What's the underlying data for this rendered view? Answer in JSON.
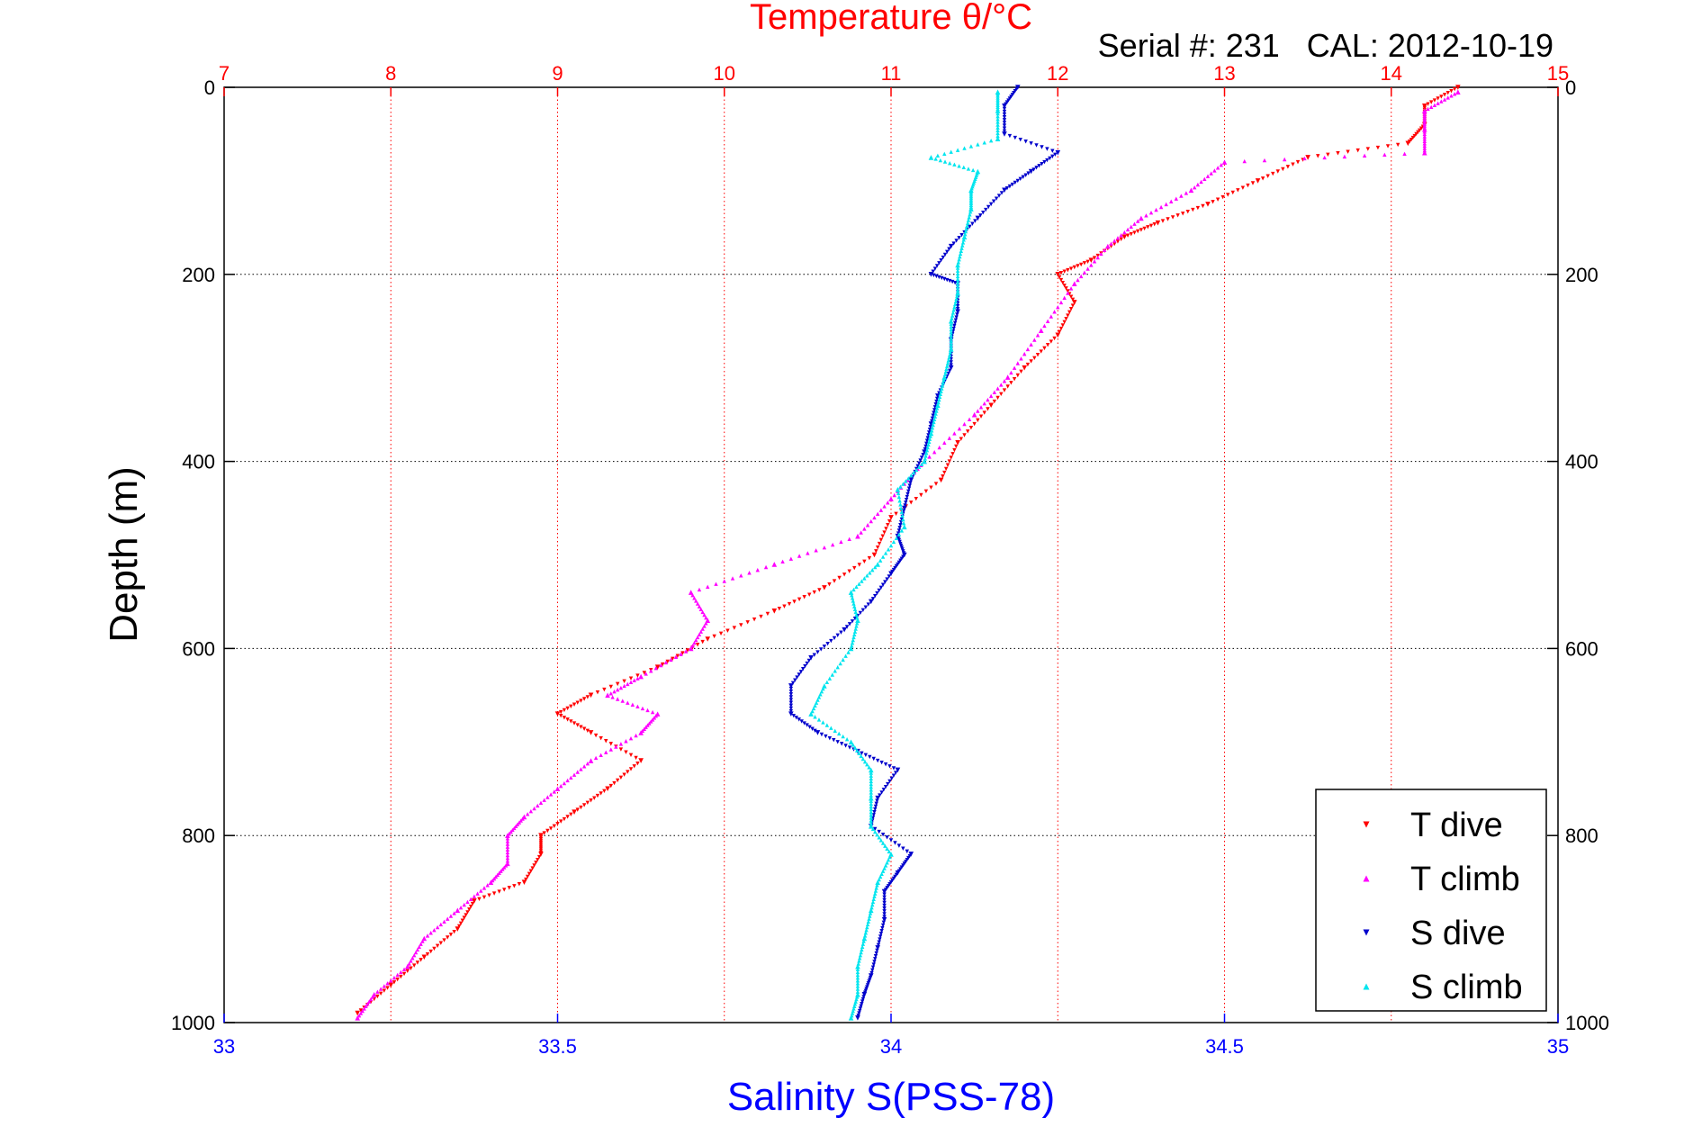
{
  "chart_data": {
    "type": "scatter",
    "title": "Temperature θ/°C",
    "subtitle": "Serial #: 231   CAL: 2012-10-19",
    "xlabel": "Salinity S(PSS-78)",
    "ylabel": "Depth (m)",
    "x_top": {
      "label": "Temperature θ/°C",
      "range": [
        7,
        15
      ],
      "ticks": [
        "7",
        "8",
        "9",
        "10",
        "11",
        "12",
        "13",
        "14",
        "15"
      ],
      "color": "#ff0000"
    },
    "x_bottom": {
      "label": "Salinity S(PSS-78)",
      "range": [
        33,
        35
      ],
      "ticks": [
        "33",
        "33.5",
        "34",
        "34.5",
        "35"
      ],
      "color": "#0000ff"
    },
    "y_range": [
      0,
      1000
    ],
    "y_reversed": true,
    "y_ticks": [
      "0",
      "200",
      "400",
      "600",
      "800",
      "1000"
    ],
    "grid": true,
    "legend_position": "bottom-right",
    "series": [
      {
        "name": "T dive",
        "axis": "top",
        "color": "#ff0000",
        "marker": "triangle-down",
        "points": [
          [
            14.4,
            0
          ],
          [
            14.2,
            20
          ],
          [
            14.2,
            40
          ],
          [
            14.1,
            60
          ],
          [
            13.5,
            75
          ],
          [
            13.2,
            100
          ],
          [
            12.9,
            125
          ],
          [
            12.6,
            145
          ],
          [
            12.4,
            160
          ],
          [
            12.2,
            185
          ],
          [
            12.0,
            200
          ],
          [
            12.1,
            230
          ],
          [
            12.0,
            265
          ],
          [
            11.8,
            300
          ],
          [
            11.6,
            340
          ],
          [
            11.4,
            380
          ],
          [
            11.3,
            420
          ],
          [
            11.0,
            460
          ],
          [
            10.9,
            500
          ],
          [
            10.6,
            535
          ],
          [
            10.3,
            560
          ],
          [
            9.9,
            590
          ],
          [
            9.6,
            620
          ],
          [
            9.2,
            650
          ],
          [
            9.0,
            670
          ],
          [
            9.2,
            690
          ],
          [
            9.5,
            720
          ],
          [
            9.3,
            750
          ],
          [
            9.1,
            775
          ],
          [
            8.9,
            800
          ],
          [
            8.9,
            820
          ],
          [
            8.8,
            850
          ],
          [
            8.5,
            870
          ],
          [
            8.4,
            900
          ],
          [
            8.2,
            930
          ],
          [
            8.0,
            960
          ],
          [
            7.8,
            990
          ]
        ]
      },
      {
        "name": "T climb",
        "axis": "top",
        "color": "#ff00ff",
        "marker": "triangle-up",
        "points": [
          [
            14.4,
            5
          ],
          [
            14.2,
            25
          ],
          [
            14.2,
            45
          ],
          [
            14.2,
            70
          ],
          [
            13.0,
            80
          ],
          [
            12.8,
            110
          ],
          [
            12.5,
            140
          ],
          [
            12.3,
            170
          ],
          [
            12.1,
            210
          ],
          [
            11.9,
            260
          ],
          [
            11.7,
            310
          ],
          [
            11.5,
            350
          ],
          [
            11.2,
            400
          ],
          [
            11.0,
            440
          ],
          [
            10.8,
            480
          ],
          [
            10.3,
            510
          ],
          [
            9.8,
            540
          ],
          [
            9.9,
            570
          ],
          [
            9.8,
            600
          ],
          [
            9.5,
            630
          ],
          [
            9.3,
            650
          ],
          [
            9.6,
            670
          ],
          [
            9.5,
            690
          ],
          [
            9.2,
            720
          ],
          [
            9.0,
            750
          ],
          [
            8.8,
            780
          ],
          [
            8.7,
            800
          ],
          [
            8.7,
            830
          ],
          [
            8.6,
            850
          ],
          [
            8.4,
            880
          ],
          [
            8.2,
            910
          ],
          [
            8.1,
            940
          ],
          [
            7.9,
            970
          ],
          [
            7.8,
            995
          ]
        ]
      },
      {
        "name": "S dive",
        "axis": "bottom",
        "color": "#0000cc",
        "marker": "triangle-down",
        "points": [
          [
            34.19,
            0
          ],
          [
            34.17,
            20
          ],
          [
            34.17,
            50
          ],
          [
            34.25,
            70
          ],
          [
            34.21,
            90
          ],
          [
            34.17,
            110
          ],
          [
            34.13,
            140
          ],
          [
            34.09,
            170
          ],
          [
            34.06,
            200
          ],
          [
            34.1,
            210
          ],
          [
            34.1,
            240
          ],
          [
            34.09,
            270
          ],
          [
            34.09,
            300
          ],
          [
            34.07,
            330
          ],
          [
            34.06,
            360
          ],
          [
            34.05,
            390
          ],
          [
            34.03,
            420
          ],
          [
            34.02,
            450
          ],
          [
            34.01,
            480
          ],
          [
            34.02,
            500
          ],
          [
            34.0,
            520
          ],
          [
            33.97,
            550
          ],
          [
            33.93,
            580
          ],
          [
            33.88,
            610
          ],
          [
            33.85,
            640
          ],
          [
            33.85,
            670
          ],
          [
            33.89,
            690
          ],
          [
            33.95,
            710
          ],
          [
            34.01,
            730
          ],
          [
            33.98,
            760
          ],
          [
            33.97,
            790
          ],
          [
            34.03,
            820
          ],
          [
            34.01,
            840
          ],
          [
            33.99,
            860
          ],
          [
            33.99,
            890
          ],
          [
            33.98,
            920
          ],
          [
            33.97,
            950
          ],
          [
            33.96,
            970
          ],
          [
            33.95,
            995
          ]
        ]
      },
      {
        "name": "S climb",
        "axis": "bottom",
        "color": "#00e5ee",
        "marker": "triangle-up",
        "points": [
          [
            34.16,
            5
          ],
          [
            34.16,
            25
          ],
          [
            34.16,
            55
          ],
          [
            34.06,
            75
          ],
          [
            34.13,
            90
          ],
          [
            34.12,
            110
          ],
          [
            34.12,
            130
          ],
          [
            34.11,
            160
          ],
          [
            34.1,
            190
          ],
          [
            34.1,
            220
          ],
          [
            34.09,
            250
          ],
          [
            34.09,
            280
          ],
          [
            34.08,
            310
          ],
          [
            34.07,
            340
          ],
          [
            34.06,
            370
          ],
          [
            34.05,
            400
          ],
          [
            34.01,
            430
          ],
          [
            34.02,
            470
          ],
          [
            33.98,
            510
          ],
          [
            33.94,
            540
          ],
          [
            33.95,
            570
          ],
          [
            33.94,
            600
          ],
          [
            33.9,
            640
          ],
          [
            33.88,
            670
          ],
          [
            33.94,
            700
          ],
          [
            33.97,
            730
          ],
          [
            33.97,
            760
          ],
          [
            33.97,
            790
          ],
          [
            34.0,
            820
          ],
          [
            33.98,
            850
          ],
          [
            33.97,
            880
          ],
          [
            33.96,
            910
          ],
          [
            33.95,
            940
          ],
          [
            33.95,
            970
          ],
          [
            33.94,
            995
          ]
        ]
      }
    ]
  }
}
